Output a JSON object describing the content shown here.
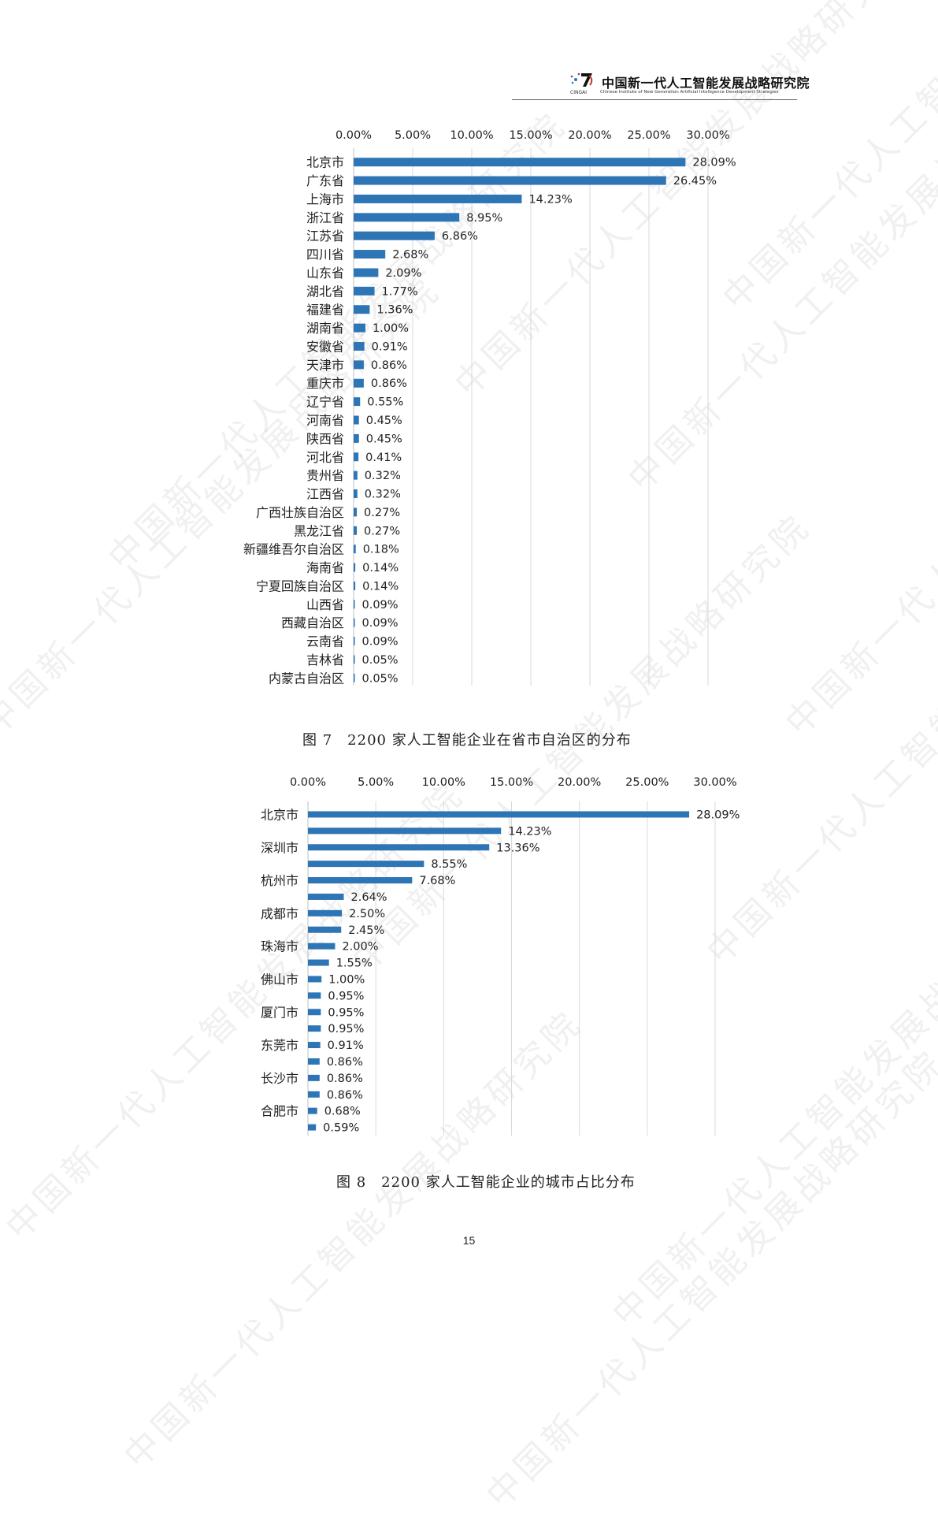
{
  "header": {
    "logo_abbr": "CINGAI",
    "org_name_cn": "中国新一代人工智能发展战略研究院",
    "org_name_en": "Chinese Institute of New Generation Artificial Intelligence Development Strategies"
  },
  "watermark": {
    "text": "中国新一代人工智能发展战略研究院"
  },
  "figure7": {
    "caption": "图 7　2200 家人工智能企业在省市自治区的分布"
  },
  "figure8": {
    "caption": "图 8　2200 家人工智能企业的城市占比分布"
  },
  "page_number": "15",
  "colors": {
    "bar": "#2e75b6",
    "grid": "#d9d9d9"
  },
  "chart_data": [
    {
      "type": "bar",
      "orientation": "horizontal",
      "xlim": [
        0,
        30
      ],
      "x_ticks": [
        "0.00%",
        "5.00%",
        "10.00%",
        "15.00%",
        "20.00%",
        "25.00%",
        "30.00%"
      ],
      "x_tick_values": [
        0,
        5,
        10,
        15,
        20,
        25,
        30
      ],
      "axis_position": "top",
      "grid": true,
      "categories": [
        "北京市",
        "广东省",
        "上海市",
        "浙江省",
        "江苏省",
        "四川省",
        "山东省",
        "湖北省",
        "福建省",
        "湖南省",
        "安徽省",
        "天津市",
        "重庆市",
        "辽宁省",
        "河南省",
        "陕西省",
        "河北省",
        "贵州省",
        "江西省",
        "广西壮族自治区",
        "黑龙江省",
        "新疆维吾尔自治区",
        "海南省",
        "宁夏回族自治区",
        "山西省",
        "西藏自治区",
        "云南省",
        "吉林省",
        "内蒙古自治区"
      ],
      "values": [
        28.09,
        26.45,
        14.23,
        8.95,
        6.86,
        2.68,
        2.09,
        1.77,
        1.36,
        1.0,
        0.91,
        0.86,
        0.86,
        0.55,
        0.45,
        0.45,
        0.41,
        0.32,
        0.32,
        0.27,
        0.27,
        0.18,
        0.14,
        0.14,
        0.09,
        0.09,
        0.09,
        0.05,
        0.05
      ],
      "data_labels": [
        "28.09%",
        "26.45%",
        "14.23%",
        "8.95%",
        "6.86%",
        "2.68%",
        "2.09%",
        "1.77%",
        "1.36%",
        "1.00%",
        "0.91%",
        "0.86%",
        "0.86%",
        "0.55%",
        "0.45%",
        "0.45%",
        "0.41%",
        "0.32%",
        "0.32%",
        "0.27%",
        "0.27%",
        "0.18%",
        "0.14%",
        "0.14%",
        "0.09%",
        "0.09%",
        "0.09%",
        "0.05%",
        "0.05%"
      ]
    },
    {
      "type": "bar",
      "orientation": "horizontal",
      "xlim": [
        0,
        30
      ],
      "x_ticks": [
        "0.00%",
        "5.00%",
        "10.00%",
        "15.00%",
        "20.00%",
        "25.00%",
        "30.00%"
      ],
      "x_tick_values": [
        0,
        5,
        10,
        15,
        20,
        25,
        30
      ],
      "axis_position": "top",
      "grid": true,
      "categories": [
        "北京市",
        "",
        "深圳市",
        "",
        "杭州市",
        "",
        "成都市",
        "",
        "珠海市",
        "",
        "佛山市",
        "",
        "厦门市",
        "",
        "东莞市",
        "",
        "长沙市",
        "",
        "合肥市",
        ""
      ],
      "values": [
        28.09,
        14.23,
        13.36,
        8.55,
        7.68,
        2.64,
        2.5,
        2.45,
        2.0,
        1.55,
        1.0,
        0.95,
        0.95,
        0.95,
        0.91,
        0.86,
        0.86,
        0.86,
        0.68,
        0.59
      ],
      "data_labels": [
        "28.09%",
        "14.23%",
        "13.36%",
        "8.55%",
        "7.68%",
        "2.64%",
        "2.50%",
        "2.45%",
        "2.00%",
        "1.55%",
        "1.00%",
        "0.95%",
        "0.95%",
        "0.95%",
        "0.91%",
        "0.86%",
        "0.86%",
        "0.86%",
        "0.68%",
        "0.59%"
      ]
    }
  ]
}
